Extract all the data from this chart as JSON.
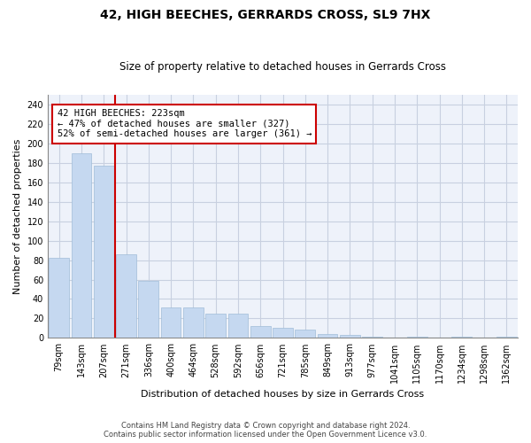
{
  "title1": "42, HIGH BEECHES, GERRARDS CROSS, SL9 7HX",
  "title2": "Size of property relative to detached houses in Gerrards Cross",
  "xlabel": "Distribution of detached houses by size in Gerrards Cross",
  "ylabel": "Number of detached properties",
  "categories": [
    "79sqm",
    "143sqm",
    "207sqm",
    "271sqm",
    "336sqm",
    "400sqm",
    "464sqm",
    "528sqm",
    "592sqm",
    "656sqm",
    "721sqm",
    "785sqm",
    "849sqm",
    "913sqm",
    "977sqm",
    "1041sqm",
    "1105sqm",
    "1170sqm",
    "1234sqm",
    "1298sqm",
    "1362sqm"
  ],
  "values": [
    82,
    190,
    177,
    86,
    59,
    31,
    31,
    25,
    25,
    12,
    10,
    9,
    4,
    3,
    1,
    0,
    1,
    0,
    1,
    0,
    1
  ],
  "bar_color": "#c5d8f0",
  "bar_edge_color": "#a0bdd8",
  "red_line_x": 2.5,
  "annotation_text": "42 HIGH BEECHES: 223sqm\n← 47% of detached houses are smaller (327)\n52% of semi-detached houses are larger (361) →",
  "annotation_box_color": "#ffffff",
  "annotation_border_color": "#cc0000",
  "ylim": [
    0,
    250
  ],
  "yticks": [
    0,
    20,
    40,
    60,
    80,
    100,
    120,
    140,
    160,
    180,
    200,
    220,
    240
  ],
  "background_color": "#eef2fa",
  "grid_color": "#c8d0e0",
  "footer1": "Contains HM Land Registry data © Crown copyright and database right 2024.",
  "footer2": "Contains public sector information licensed under the Open Government Licence v3.0."
}
